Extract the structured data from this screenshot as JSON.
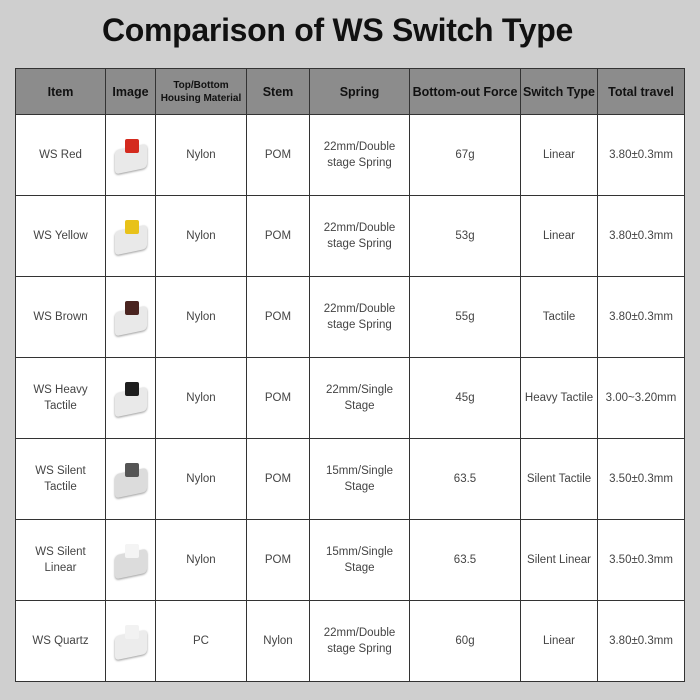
{
  "title": "Comparison of WS Switch Type",
  "headers": [
    "Item",
    "Image",
    "Top/Bottom Housing Material",
    "Stem",
    "Spring",
    "Bottom-out Force",
    "Switch Type",
    "Total travel"
  ],
  "rows": [
    {
      "item": "WS Red",
      "stem_color": "#d42a1e",
      "housing_color": "#e9e9e9",
      "housing": "Nylon",
      "stem": "POM",
      "spring": "22mm/Double stage Spring",
      "force": "67g",
      "type": "Linear",
      "travel": "3.80±0.3mm"
    },
    {
      "item": "WS Yellow",
      "stem_color": "#e8c21a",
      "housing_color": "#e9e9e9",
      "housing": "Nylon",
      "stem": "POM",
      "spring": "22mm/Double stage Spring",
      "force": "53g",
      "type": "Linear",
      "travel": "3.80±0.3mm"
    },
    {
      "item": "WS Brown",
      "stem_color": "#4a2420",
      "housing_color": "#e9e9e9",
      "housing": "Nylon",
      "stem": "POM",
      "spring": "22mm/Double stage Spring",
      "force": "55g",
      "type": "Tactile",
      "travel": "3.80±0.3mm"
    },
    {
      "item": "WS Heavy Tactile",
      "stem_color": "#1e1e1e",
      "housing_color": "#e9e9e9",
      "housing": "Nylon",
      "stem": "POM",
      "spring": "22mm/Single Stage",
      "force": "45g",
      "type": "Heavy Tactile",
      "travel": "3.00~3.20mm"
    },
    {
      "item": "WS Silent Tactile",
      "stem_color": "#555555",
      "housing_color": "#dcdcdc",
      "housing": "Nylon",
      "stem": "POM",
      "spring": "15mm/Single Stage",
      "force": "63.5",
      "type": "Silent Tactile",
      "travel": "3.50±0.3mm"
    },
    {
      "item": "WS Silent Linear",
      "stem_color": "#f4f4f4",
      "housing_color": "#dcdcdc",
      "housing": "Nylon",
      "stem": "POM",
      "spring": "15mm/Single Stage",
      "force": "63.5",
      "type": "Silent Linear",
      "travel": "3.50±0.3mm"
    },
    {
      "item": "WS Quartz",
      "stem_color": "#f2f2f2",
      "housing_color": "#ececec",
      "housing": "PC",
      "stem": "Nylon",
      "spring": "22mm/Double stage Spring",
      "force": "60g",
      "type": "Linear",
      "travel": "3.80±0.3mm"
    }
  ]
}
